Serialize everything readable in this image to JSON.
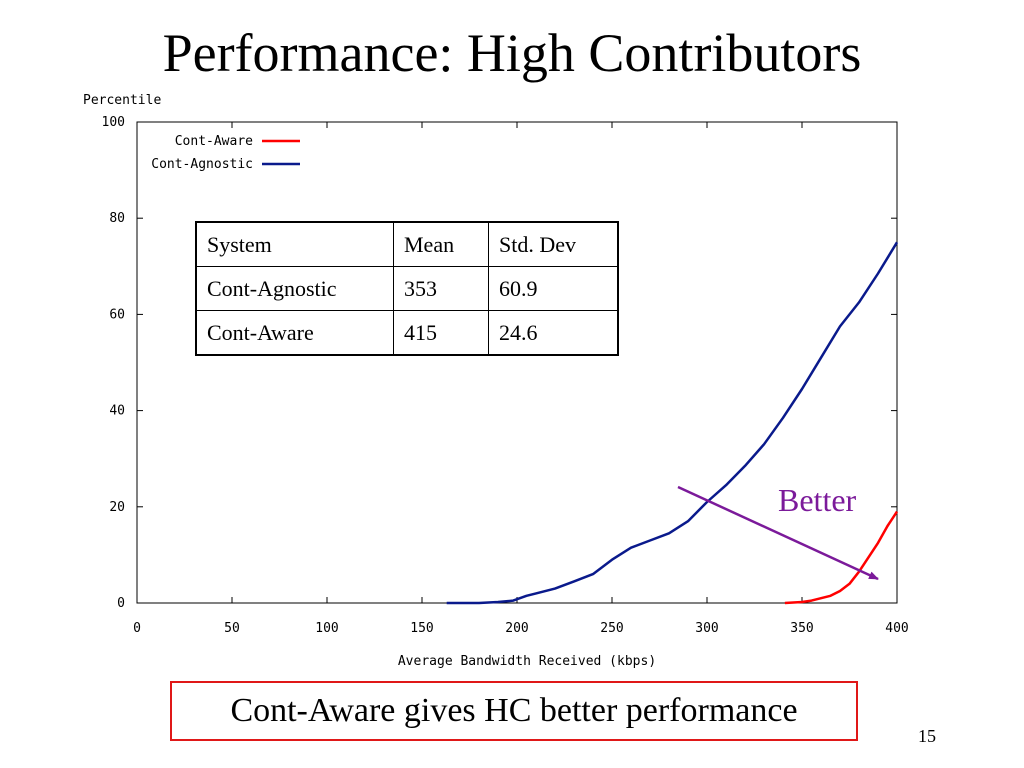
{
  "slide": {
    "title": "Performance: High Contributors",
    "conclusion": "Cont-Aware gives HC better performance",
    "page_number": "15"
  },
  "annotation": {
    "label": "Better",
    "color": "#7b1a9a"
  },
  "table": {
    "headers": [
      "System",
      "Mean",
      "Std. Dev"
    ],
    "rows": [
      [
        "Cont-Agnostic",
        "353",
        "60.9"
      ],
      [
        "Cont-Aware",
        "415",
        "24.6"
      ]
    ]
  },
  "chart_data": {
    "type": "line",
    "xlabel": "Average Bandwidth Received (kbps)",
    "ylabel": "Percentile",
    "xlim": [
      0,
      400
    ],
    "ylim": [
      0,
      100
    ],
    "x_ticks": [
      0,
      50,
      100,
      150,
      200,
      250,
      300,
      350,
      400
    ],
    "y_ticks": [
      0,
      20,
      40,
      60,
      80,
      100
    ],
    "grid": false,
    "legend_position": "top-left",
    "series": [
      {
        "name": "Cont-Aware",
        "color": "#ff0000",
        "x": [
          341,
          350,
          355,
          360,
          365,
          370,
          375,
          380,
          385,
          390,
          395,
          400
        ],
        "y": [
          0,
          0.2,
          0.5,
          1,
          1.5,
          2.5,
          4,
          6.5,
          9.5,
          12.5,
          16,
          19
        ]
      },
      {
        "name": "Cont-Agnostic",
        "color": "#0a1a8c",
        "x": [
          163,
          180,
          190,
          198,
          205,
          210,
          220,
          230,
          240,
          250,
          260,
          270,
          280,
          290,
          300,
          310,
          320,
          330,
          340,
          350,
          360,
          370,
          380,
          390,
          400
        ],
        "y": [
          0,
          0,
          0.2,
          0.5,
          1.5,
          2,
          3,
          4.5,
          6,
          9,
          11.5,
          13,
          14.5,
          17,
          21,
          24.5,
          28.5,
          33,
          38.5,
          44.5,
          51,
          57.5,
          62.5,
          68.5,
          75
        ]
      }
    ]
  }
}
